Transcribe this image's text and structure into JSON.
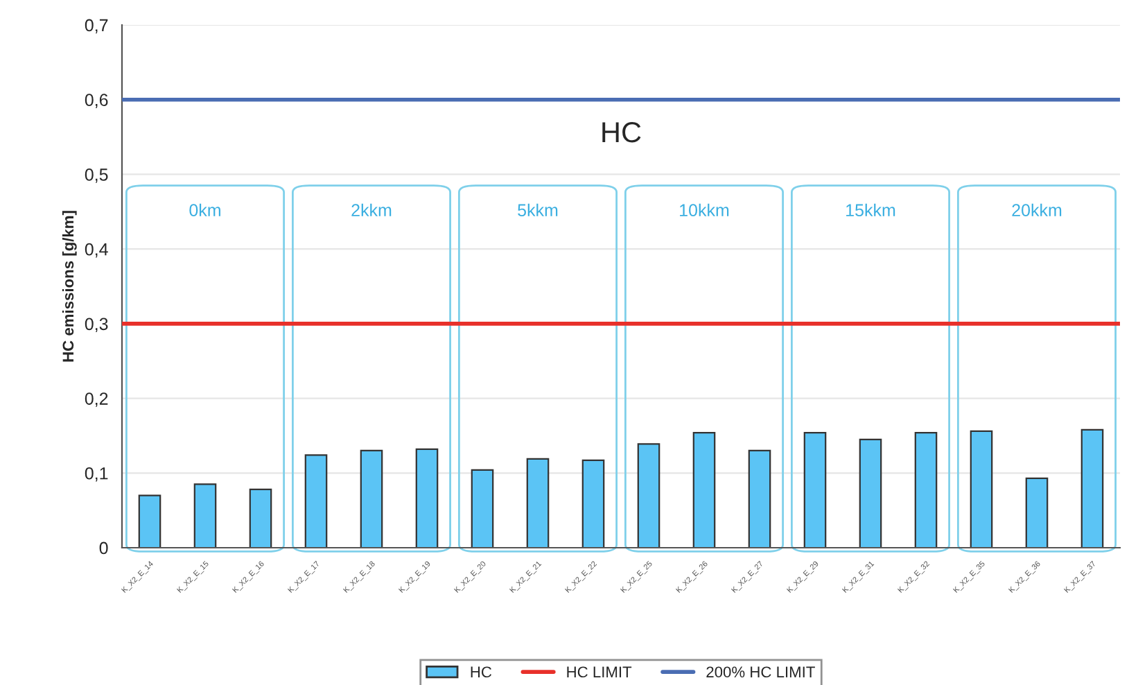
{
  "chart_data": {
    "type": "bar",
    "title": "HC",
    "ylabel": "HC emissions [g/km]",
    "categories": [
      "K_X2_E_14",
      "K_X2_E_15",
      "K_X2_E_16",
      "K_X2_E_17",
      "K_X2_E_18",
      "K_X2_E_19",
      "K_X2_E_20",
      "K_X2_E_21",
      "K_X2_E_22",
      "K_X2_E_25",
      "K_X2_E_26",
      "K_X2_E_27",
      "K_X2_E_29",
      "K_X2_E_31",
      "K_X2_E_32",
      "K_X2_E_35",
      "K_X2_E_36",
      "K_X2_E_37"
    ],
    "series": [
      {
        "name": "HC",
        "color": "#5bc4f5",
        "values": [
          0.07,
          0.085,
          0.078,
          0.124,
          0.13,
          0.132,
          0.104,
          0.119,
          0.117,
          0.139,
          0.154,
          0.13,
          0.154,
          0.145,
          0.154,
          0.156,
          0.093,
          0.158
        ]
      }
    ],
    "ref_lines": [
      {
        "axis": "y",
        "value": 0.3,
        "label": "HC LIMIT",
        "color": "#e8302a"
      },
      {
        "axis": "y",
        "value": 0.6,
        "label": "200% HC LIMIT",
        "color": "#4a6db3"
      }
    ],
    "annotations": [
      "0km",
      "2kkm",
      "5kkm",
      "10kkm",
      "15kkm",
      "20kkm"
    ],
    "ylim": [
      0,
      0.7
    ],
    "yticks": [
      {
        "value": 0,
        "label": "0"
      },
      {
        "value": 0.1,
        "label": "0,1"
      },
      {
        "value": 0.2,
        "label": "0,2"
      },
      {
        "value": 0.3,
        "label": "0,3"
      },
      {
        "value": 0.4,
        "label": "0,4"
      },
      {
        "value": 0.5,
        "label": "0,5"
      },
      {
        "value": 0.6,
        "label": "0,6"
      },
      {
        "value": 0.7,
        "label": "0,7"
      }
    ],
    "grid": "y",
    "legend": "bottom"
  }
}
